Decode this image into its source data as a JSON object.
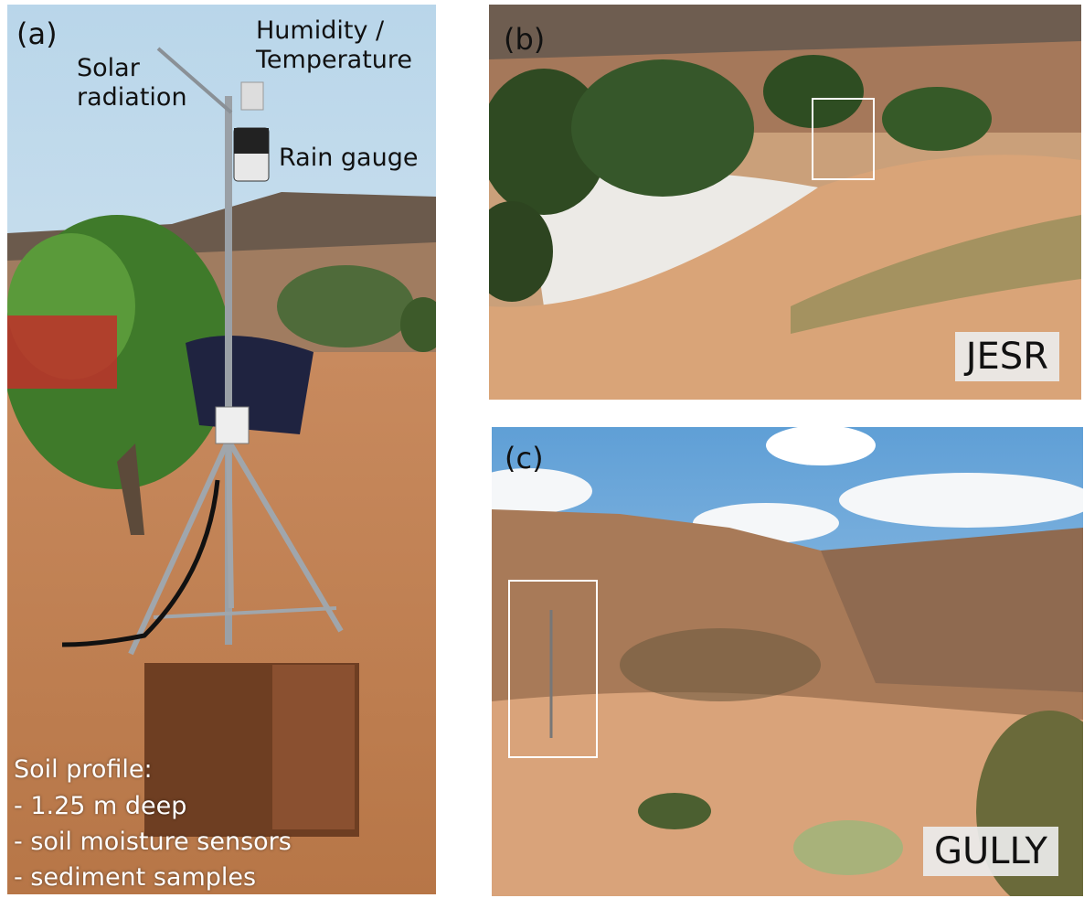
{
  "panels": [
    {
      "label": "(a)",
      "annotations": [
        "Solar radiation",
        "Humidity / Temperature",
        "Rain gauge"
      ],
      "note": {
        "title": "Soil profile:",
        "items": [
          "- 1.25 m deep",
          "- soil moisture sensors",
          "- sediment samples"
        ]
      }
    },
    {
      "label": "(b)",
      "site": "JESR"
    },
    {
      "label": "(c)",
      "site": "GULLY"
    }
  ]
}
